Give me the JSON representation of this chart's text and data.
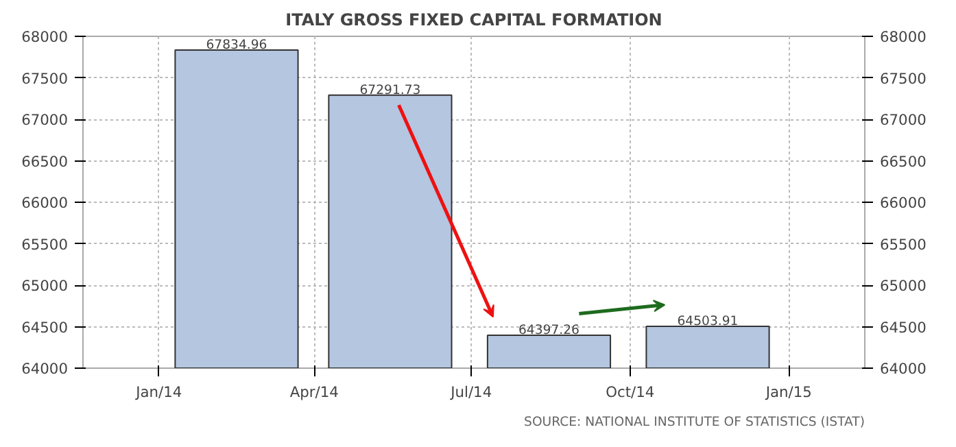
{
  "chart_data": {
    "type": "bar",
    "title": "ITALY GROSS FIXED CAPITAL FORMATION",
    "x": [
      "2014-02-15",
      "2014-05-15",
      "2014-08-15",
      "2014-11-15"
    ],
    "series": [
      {
        "color": "#b4c6e0",
        "values": [
          67834.96,
          67291.73,
          64397.26,
          64503.91
        ]
      }
    ],
    "data_labels": true,
    "xlim": [
      "2013-11-18",
      "2015-02-14"
    ],
    "xticks": [
      {
        "value": "2014-01-01",
        "label": "Jan/14"
      },
      {
        "value": "2014-04-01",
        "label": "Apr/14"
      },
      {
        "value": "2014-07-01",
        "label": "Jul/14"
      },
      {
        "value": "2014-10-01",
        "label": "Oct/14"
      },
      {
        "value": "2015-01-01",
        "label": "Jan/15"
      }
    ],
    "ylim": [
      64000,
      68000
    ],
    "yticks": [
      64000,
      64500,
      65000,
      65500,
      66000,
      66500,
      67000,
      67500,
      68000
    ],
    "y2lim": [
      64000,
      68000
    ],
    "y2ticks": [
      64000,
      64500,
      65000,
      65500,
      66000,
      66500,
      67000,
      67500,
      68000
    ],
    "grid": true,
    "annotations": [
      "SOURCE: NATIONAL INSTITUTE OF STATISTICS (ISTAT)"
    ]
  }
}
